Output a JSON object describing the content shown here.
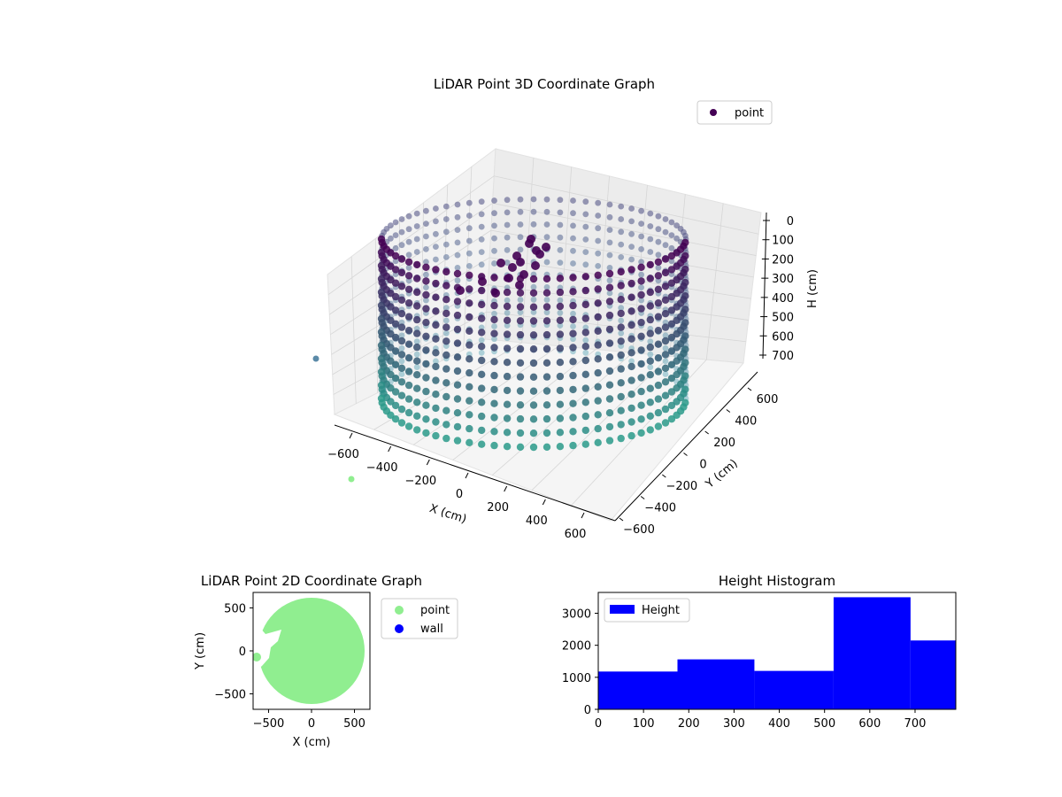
{
  "chart_data": [
    {
      "type": "scatter",
      "projection": "3d",
      "title": "LiDAR Point 3D Coordinate Graph",
      "xlabel": "X (cm)",
      "ylabel": "Y (cm)",
      "zlabel": "H (cm)",
      "x_ticks": [
        "−600",
        "−400",
        "−200",
        "0",
        "200",
        "400",
        "600"
      ],
      "y_ticks": [
        "−600",
        "−400",
        "−200",
        "0",
        "200",
        "400",
        "600"
      ],
      "z_ticks": [
        "0",
        "100",
        "200",
        "300",
        "400",
        "500",
        "600",
        "700"
      ],
      "xlim": [
        -700,
        700
      ],
      "ylim": [
        -700,
        700
      ],
      "zlim": [
        0,
        790
      ],
      "z_inverted": true,
      "grid": true,
      "legend": {
        "entries": [
          "point"
        ],
        "placement": "upper-right"
      },
      "colormap": "viridis",
      "colors": {
        "top": "#440154",
        "bottom": "#2a9a8a"
      },
      "series": [
        {
          "name": "point",
          "shape": "ring-wall",
          "radius_cm": 620,
          "height_range_cm": [
            0,
            790
          ],
          "outliers": [
            {
              "x": -720,
              "y": 20,
              "h": 420
            },
            {
              "x": -700,
              "y": -100,
              "h": 760
            }
          ],
          "outlier_colors": [
            "#5b8aa8",
            "#90ee90"
          ]
        }
      ]
    },
    {
      "type": "scatter",
      "title": "LiDAR Point 2D Coordinate Graph",
      "xlabel": "X (cm)",
      "ylabel": "Y (cm)",
      "x_ticks": [
        "−500",
        "0",
        "500"
      ],
      "y_ticks": [
        "500",
        "0",
        "−500"
      ],
      "xlim": [
        -680,
        680
      ],
      "ylim": [
        -680,
        680
      ],
      "legend": {
        "entries": [
          "point",
          "wall"
        ],
        "placement": "outside-right"
      },
      "series": [
        {
          "name": "point",
          "color": "#90ee90",
          "shape": "filled-disk",
          "radius_cm": 620
        },
        {
          "name": "wall",
          "color": "#0000ff"
        }
      ]
    },
    {
      "type": "bar",
      "title": "Height Histogram",
      "x_ticks": [
        "0",
        "100",
        "200",
        "300",
        "400",
        "500",
        "600",
        "700"
      ],
      "y_ticks": [
        "0",
        "1000",
        "2000",
        "3000"
      ],
      "xlim": [
        0,
        790
      ],
      "ylim": [
        0,
        3650
      ],
      "legend": {
        "entries": [
          "Height"
        ],
        "placement": "upper-left"
      },
      "series": [
        {
          "name": "Height",
          "color": "#0000ff",
          "bins": [
            {
              "x0": 0,
              "x1": 175,
              "count": 1180
            },
            {
              "x0": 175,
              "x1": 345,
              "count": 1560
            },
            {
              "x0": 345,
              "x1": 520,
              "count": 1200
            },
            {
              "x0": 520,
              "x1": 690,
              "count": 3500
            },
            {
              "x0": 690,
              "x1": 790,
              "count": 2150
            }
          ]
        }
      ]
    }
  ]
}
